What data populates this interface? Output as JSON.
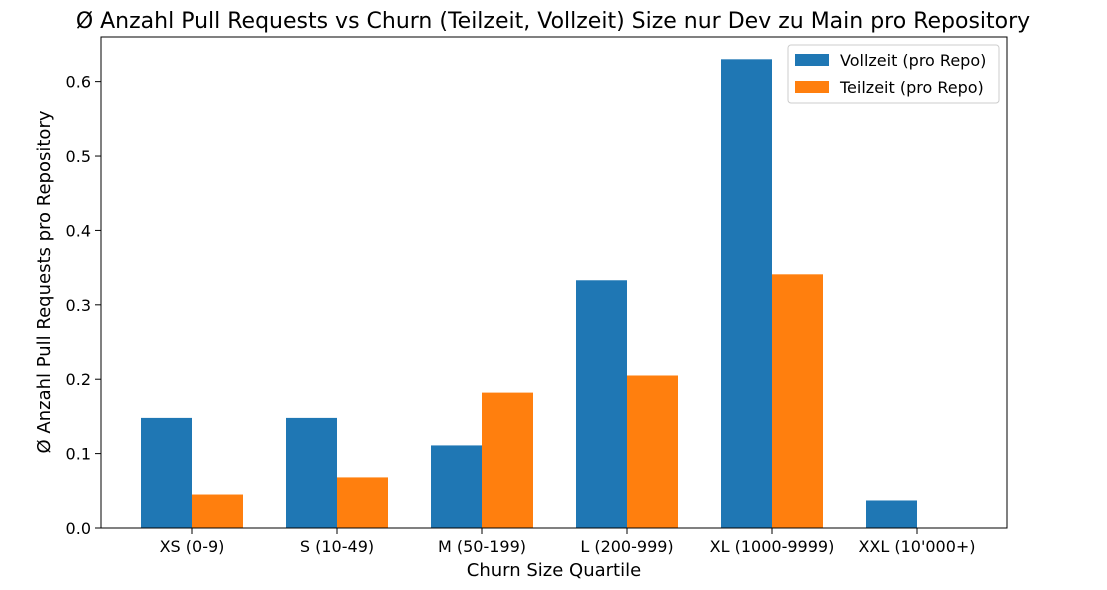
{
  "chart_data": {
    "type": "bar",
    "title": "Ø Anzahl Pull Requests vs Churn (Teilzeit, Vollzeit) Size nur Dev zu Main pro Repository",
    "xlabel": "Churn Size Quartile",
    "ylabel": "Ø Anzahl Pull Requests pro Repository",
    "categories": [
      "XS (0-9)",
      "S (10-49)",
      "M (50-199)",
      "L (200-999)",
      "XL (1000-9999)",
      "XXL (10'000+)"
    ],
    "series": [
      {
        "name": "Vollzeit (pro Repo)",
        "color": "#1f77b4",
        "values": [
          0.148,
          0.148,
          0.111,
          0.333,
          0.63,
          0.037
        ]
      },
      {
        "name": "Teilzeit (pro Repo)",
        "color": "#ff7f0e",
        "values": [
          0.045,
          0.068,
          0.182,
          0.205,
          0.341,
          0.0
        ]
      }
    ],
    "yticks": [
      "0.0",
      "0.1",
      "0.2",
      "0.3",
      "0.4",
      "0.5",
      "0.6"
    ],
    "ylim": [
      0,
      0.66
    ],
    "legend_position": "top-right",
    "grid": false
  }
}
